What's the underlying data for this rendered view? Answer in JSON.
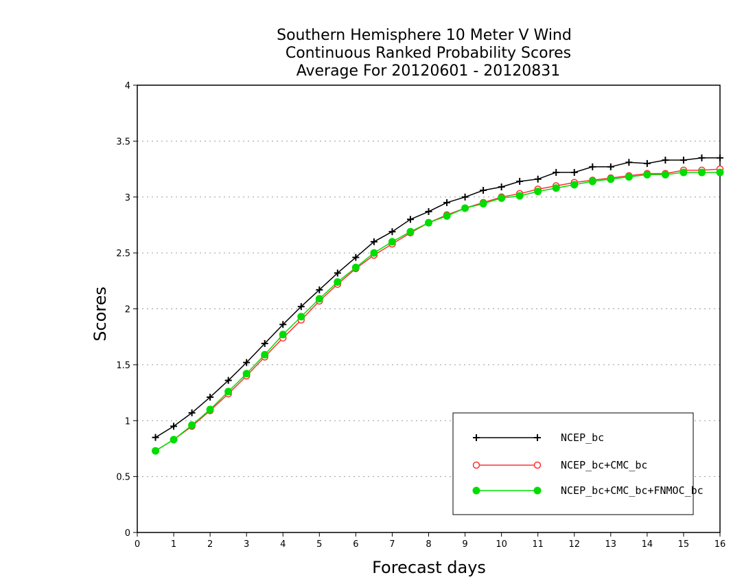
{
  "chart_data": {
    "type": "line",
    "title_lines": [
      "Southern Hemisphere 10 Meter V Wind",
      "Continuous Ranked Probability Scores",
      "Average For 20120601 - 20120831"
    ],
    "xlabel": "Forecast days",
    "ylabel": "Scores",
    "xlim": [
      0,
      16
    ],
    "ylim": [
      0,
      4
    ],
    "x_ticks": [
      "0",
      "1",
      "2",
      "3",
      "4",
      "5",
      "6",
      "7",
      "8",
      "9",
      "10",
      "11",
      "12",
      "13",
      "14",
      "15",
      "16"
    ],
    "y_ticks": [
      "0",
      "0.5",
      "1",
      "1.5",
      "2",
      "2.5",
      "3",
      "3.5",
      "4"
    ],
    "y_grid": true,
    "legend_position": "bottom-right",
    "x": [
      0.5,
      1,
      1.5,
      2,
      2.5,
      3,
      3.5,
      4,
      4.5,
      5,
      5.5,
      6,
      6.5,
      7,
      7.5,
      8,
      8.5,
      9,
      9.5,
      10,
      10.5,
      11,
      11.5,
      12,
      12.5,
      13,
      13.5,
      14,
      14.5,
      15,
      15.5,
      16
    ],
    "series": [
      {
        "name": "NCEP_bc",
        "color": "#000000",
        "marker": "plus",
        "values": [
          0.85,
          0.95,
          1.07,
          1.21,
          1.36,
          1.52,
          1.69,
          1.86,
          2.02,
          2.17,
          2.32,
          2.46,
          2.6,
          2.69,
          2.8,
          2.87,
          2.95,
          3.0,
          3.06,
          3.09,
          3.14,
          3.16,
          3.22,
          3.22,
          3.27,
          3.27,
          3.31,
          3.3,
          3.33,
          3.33,
          3.35,
          3.35
        ]
      },
      {
        "name": "NCEP_bc+CMC_bc",
        "color": "#ff3030",
        "marker": "open-circle",
        "values": [
          0.73,
          0.83,
          0.95,
          1.09,
          1.24,
          1.4,
          1.57,
          1.74,
          1.9,
          2.07,
          2.22,
          2.36,
          2.48,
          2.58,
          2.68,
          2.77,
          2.84,
          2.9,
          2.95,
          3.0,
          3.03,
          3.07,
          3.1,
          3.13,
          3.15,
          3.17,
          3.19,
          3.21,
          3.21,
          3.24,
          3.24,
          3.25
        ]
      },
      {
        "name": "NCEP_bc+CMC_bc+FNMOC_bc",
        "color": "#00dd00",
        "marker": "filled-circle",
        "values": [
          0.73,
          0.83,
          0.96,
          1.1,
          1.26,
          1.42,
          1.59,
          1.77,
          1.93,
          2.09,
          2.24,
          2.37,
          2.5,
          2.6,
          2.69,
          2.77,
          2.83,
          2.9,
          2.94,
          2.99,
          3.01,
          3.05,
          3.08,
          3.11,
          3.14,
          3.16,
          3.18,
          3.2,
          3.2,
          3.22,
          3.22,
          3.22
        ]
      }
    ]
  }
}
